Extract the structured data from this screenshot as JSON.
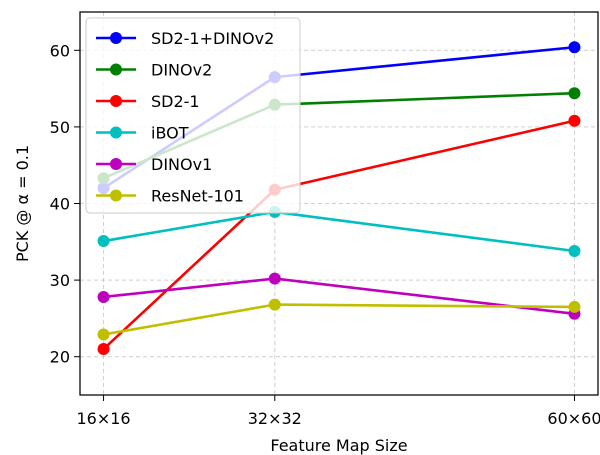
{
  "chart_data": {
    "type": "line",
    "title": "",
    "xlabel": "Feature Map Size",
    "ylabel": "PCK @ α = 0.1",
    "categories": [
      "16×16",
      "32×32",
      "60×60"
    ],
    "x": [
      16,
      32,
      60
    ],
    "ylim": [
      15,
      65
    ],
    "yticks": [
      20,
      30,
      40,
      50,
      60
    ],
    "grid": true,
    "legend_position": "upper-left",
    "series": [
      {
        "name": "SD2-1+DINOv2",
        "color": "#0000ff",
        "values": [
          42.0,
          56.5,
          60.4
        ]
      },
      {
        "name": "DINOv2",
        "color": "#008000",
        "values": [
          43.3,
          52.9,
          54.4
        ]
      },
      {
        "name": "SD2-1",
        "color": "#ff0000",
        "values": [
          21.0,
          41.8,
          50.8
        ]
      },
      {
        "name": "iBOT",
        "color": "#00bfbf",
        "values": [
          35.1,
          38.9,
          33.8
        ]
      },
      {
        "name": "DINOv1",
        "color": "#bf00bf",
        "values": [
          27.8,
          30.2,
          25.6
        ]
      },
      {
        "name": "ResNet-101",
        "color": "#bfbf00",
        "values": [
          22.9,
          26.8,
          26.5
        ]
      }
    ]
  }
}
